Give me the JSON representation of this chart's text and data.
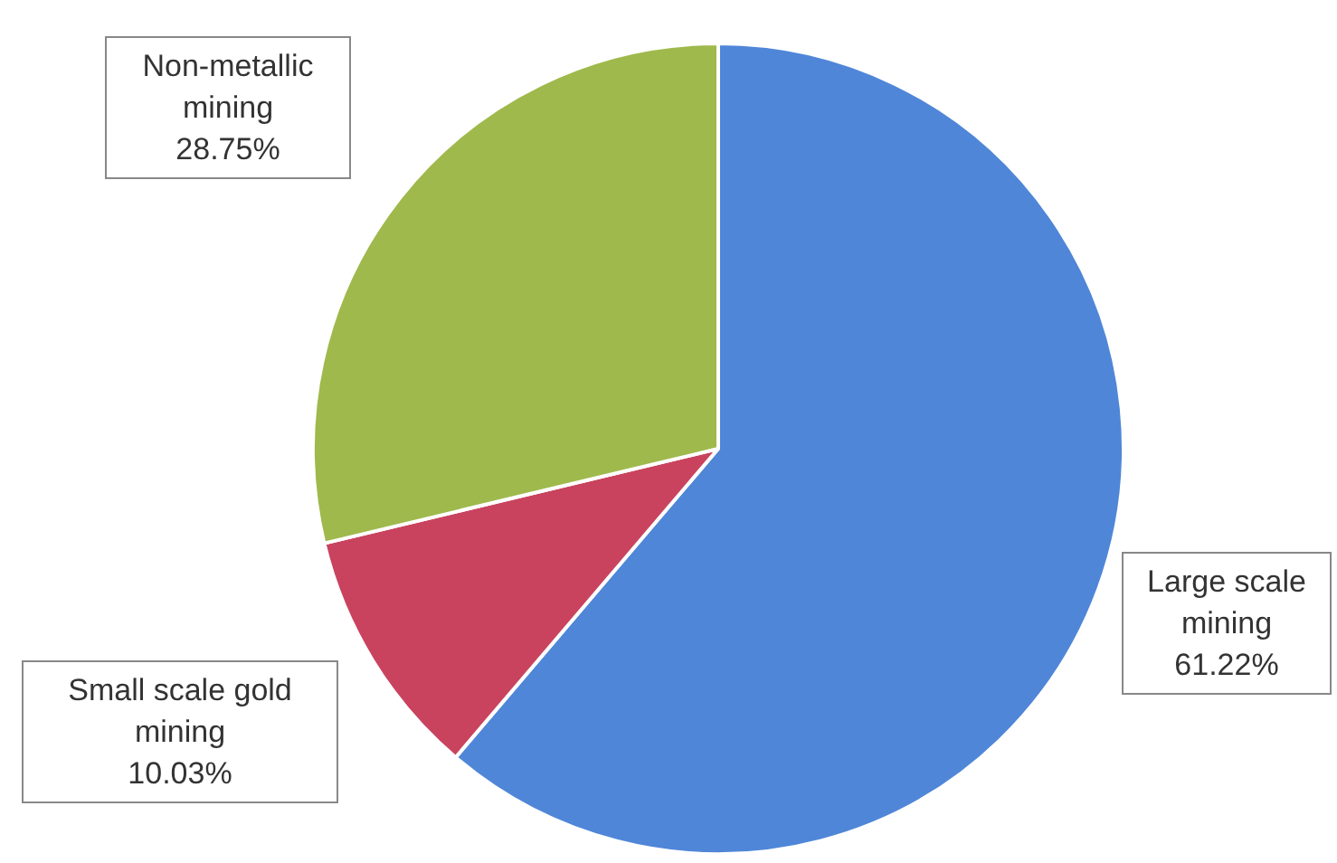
{
  "chart_data": {
    "type": "pie",
    "categories": [
      "Large scale mining",
      "Small scale gold mining",
      "Non-metallic mining"
    ],
    "values": [
      61.22,
      10.03,
      28.75
    ],
    "colors": [
      "#4f86d8",
      "#c9435e",
      "#9fb94c"
    ],
    "value_labels": [
      "61.22%",
      "10.03%",
      "28.75%"
    ],
    "legend": false
  }
}
